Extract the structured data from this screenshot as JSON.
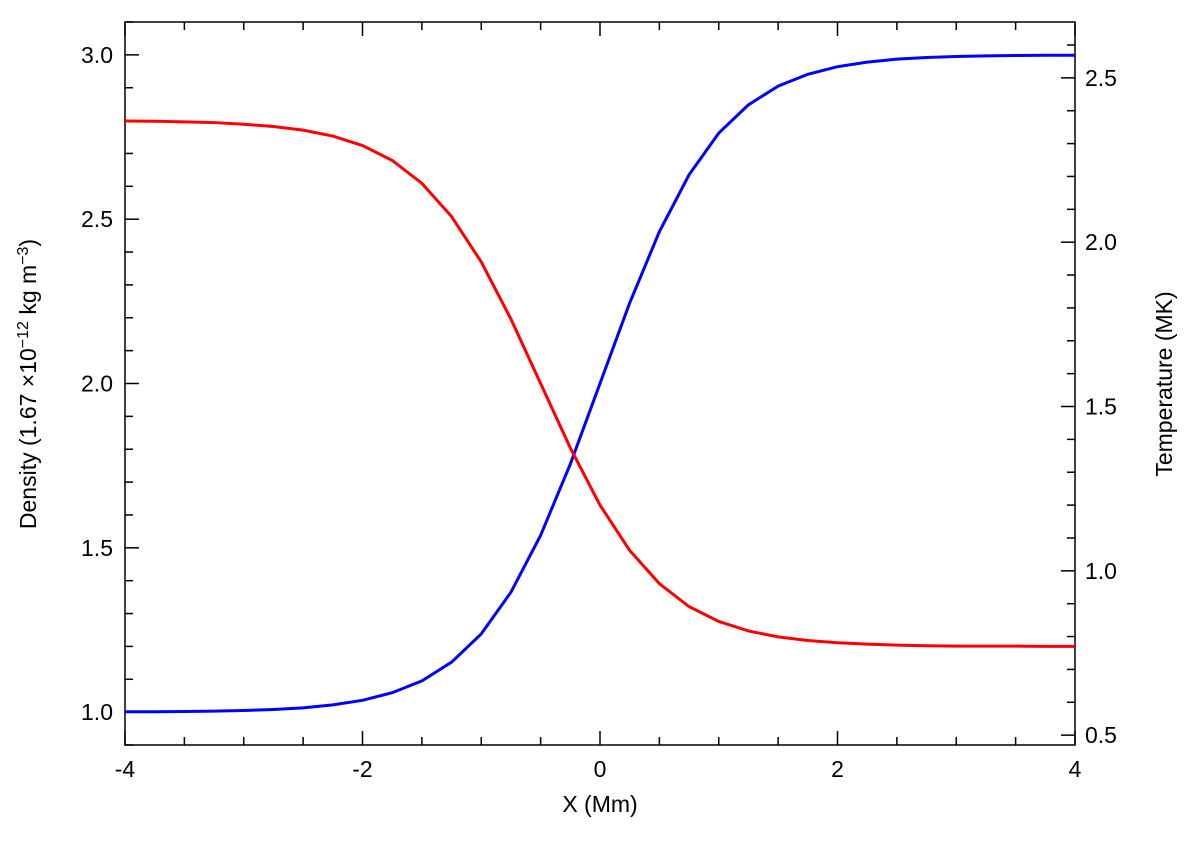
{
  "chart_data": {
    "type": "line",
    "xlabel": "X (Mm)",
    "ylabel_parts": [
      "Density (1.67 ×10",
      "−12",
      " kg m",
      "−3",
      ")"
    ],
    "y2label": "Temperature (MK)",
    "x": [
      -4,
      -3.75,
      -3.5,
      -3.25,
      -3,
      -2.75,
      -2.5,
      -2.25,
      -2,
      -1.75,
      -1.5,
      -1.25,
      -1,
      -0.75,
      -0.5,
      -0.25,
      0,
      0.25,
      0.5,
      0.75,
      1,
      1.25,
      1.5,
      1.75,
      2,
      2.25,
      2.5,
      2.75,
      3,
      3.25,
      3.5,
      3.75,
      4
    ],
    "series": [
      {
        "color": "#0000ff",
        "axis": "y",
        "values": [
          1.001,
          1.001,
          1.002,
          1.003,
          1.005,
          1.008,
          1.013,
          1.022,
          1.036,
          1.059,
          1.095,
          1.152,
          1.238,
          1.365,
          1.538,
          1.755,
          2.0,
          2.245,
          2.462,
          2.635,
          2.762,
          2.848,
          2.905,
          2.941,
          2.964,
          2.978,
          2.987,
          2.992,
          2.995,
          2.997,
          2.998,
          2.999,
          2.999
        ]
      },
      {
        "color": "#ff0000",
        "axis": "y2",
        "values": [
          2.369,
          2.368,
          2.366,
          2.364,
          2.359,
          2.352,
          2.341,
          2.323,
          2.294,
          2.249,
          2.179,
          2.078,
          1.94,
          1.766,
          1.57,
          1.374,
          1.2,
          1.062,
          0.961,
          0.891,
          0.846,
          0.817,
          0.799,
          0.788,
          0.781,
          0.777,
          0.774,
          0.772,
          0.771,
          0.771,
          0.771,
          0.77,
          0.77
        ]
      }
    ],
    "xlim": [
      -4,
      4
    ],
    "xticks": [
      -4,
      -2,
      0,
      2,
      4
    ],
    "xminorticks": [
      -3.5,
      -3,
      -2.5,
      -1.5,
      -1,
      -0.5,
      0.5,
      1,
      1.5,
      2.5,
      3,
      3.5
    ],
    "ylim": [
      0.9,
      3.1
    ],
    "yticks": [
      {
        "value": 1,
        "label": "1.0"
      },
      1.5,
      {
        "value": 2,
        "label": "2.0"
      },
      2.5,
      {
        "value": 3,
        "label": "3.0"
      }
    ],
    "yminorticks": [
      0.9,
      1.1,
      1.2,
      1.3,
      1.4,
      1.6,
      1.7,
      1.8,
      1.9,
      2.1,
      2.2,
      2.3,
      2.4,
      2.6,
      2.7,
      2.8,
      2.9,
      3.1
    ],
    "y2lim": [
      0.47,
      2.67
    ],
    "y2ticks": [
      0.5,
      {
        "value": 1,
        "label": "1.0"
      },
      1.5,
      {
        "value": 2,
        "label": "2.0"
      },
      2.5
    ],
    "y2minorticks": [
      0.6,
      0.7,
      0.8,
      0.9,
      1.1,
      1.2,
      1.3,
      1.4,
      1.6,
      1.7,
      1.8,
      1.9,
      2.1,
      2.2,
      2.3,
      2.4,
      2.6
    ]
  }
}
